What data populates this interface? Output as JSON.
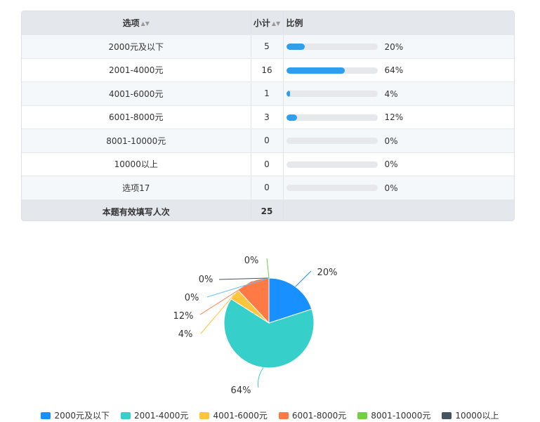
{
  "table": {
    "headers": {
      "option": "选项",
      "count": "小计",
      "ratio": "比例"
    },
    "rows": [
      {
        "label": "2000元及以下",
        "count": "5",
        "percent": "20%",
        "fraction": 0.2
      },
      {
        "label": "2001-4000元",
        "count": "16",
        "percent": "64%",
        "fraction": 0.64
      },
      {
        "label": "4001-6000元",
        "count": "1",
        "percent": "4%",
        "fraction": 0.04
      },
      {
        "label": "6001-8000元",
        "count": "3",
        "percent": "12%",
        "fraction": 0.12
      },
      {
        "label": "8001-10000元",
        "count": "0",
        "percent": "0%",
        "fraction": 0
      },
      {
        "label": "10000以上",
        "count": "0",
        "percent": "0%",
        "fraction": 0
      },
      {
        "label": "选项17",
        "count": "0",
        "percent": "0%",
        "fraction": 0
      }
    ],
    "footer": {
      "label": "本题有效填写人次",
      "total": "25"
    },
    "bar_color": "#2e9fef"
  },
  "chart_data": {
    "type": "pie",
    "slices": [
      {
        "name": "2000元及以下",
        "value": 20,
        "label": "20%",
        "color": "#1890ff"
      },
      {
        "name": "2001-4000元",
        "value": 64,
        "label": "64%",
        "color": "#36cfc9"
      },
      {
        "name": "4001-6000元",
        "value": 4,
        "label": "4%",
        "color": "#ffc53d"
      },
      {
        "name": "6001-8000元",
        "value": 12,
        "label": "12%",
        "color": "#ff7a45"
      },
      {
        "name": "8001-10000元",
        "value": 0,
        "label": "0%",
        "color": "#73d13d"
      },
      {
        "name": "10000以上",
        "value": 0,
        "label": "0%",
        "color": "#435560"
      },
      {
        "name": "选项17",
        "value": 0,
        "label": "0%",
        "color": "#69c0ff"
      }
    ],
    "legend": [
      "2000元及以下",
      "2001-4000元",
      "4001-6000元",
      "6001-8000元",
      "8001-10000元",
      "10000以上"
    ],
    "legend_position": "bottom"
  }
}
